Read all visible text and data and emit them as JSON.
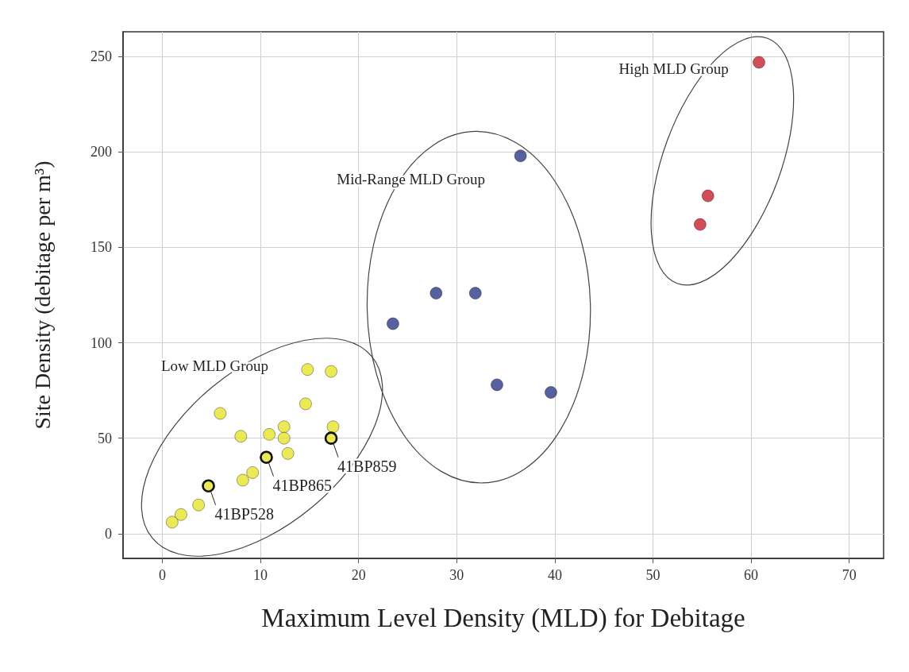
{
  "chart_data": {
    "type": "scatter",
    "xlabel": "Maximum Level Density (MLD) for Debitage",
    "ylabel": "Site Density (debitage per m³)",
    "xlim": [
      -4,
      73.5
    ],
    "ylim": [
      -13,
      263
    ],
    "xticks": [
      0,
      10,
      20,
      30,
      40,
      50,
      60,
      70
    ],
    "yticks": [
      0,
      50,
      100,
      150,
      200,
      250
    ],
    "grid": true,
    "marker": "circle",
    "legend": false,
    "series": [
      {
        "name": "Low MLD Group",
        "color": "#e6e42c",
        "x": [
          14.8,
          17.2,
          14.6,
          5.9,
          8.0,
          10.9,
          12.4,
          12.4,
          17.4,
          17.2,
          12.8,
          10.6,
          9.2,
          8.2,
          4.7,
          3.7,
          1.9,
          1.0
        ],
        "values": [
          86,
          85,
          68,
          63,
          51,
          52,
          56,
          50,
          56,
          50,
          42,
          40,
          32,
          28,
          25,
          15,
          10,
          6
        ]
      },
      {
        "name": "Mid-Range MLD Group",
        "color": "#2e3a87",
        "x": [
          36.5,
          27.9,
          31.9,
          23.5,
          34.1,
          39.6
        ],
        "values": [
          198,
          126,
          126,
          110,
          78,
          74
        ]
      },
      {
        "name": "High MLD Group",
        "color": "#c8202e",
        "x": [
          60.8,
          55.6,
          54.8
        ],
        "values": [
          247,
          177,
          162
        ]
      }
    ],
    "annotations": [
      {
        "text": "41BP528",
        "x": 4.7,
        "y": 25
      },
      {
        "text": "41BP865",
        "x": 10.6,
        "y": 40
      },
      {
        "text": "41BP859",
        "x": 17.2,
        "y": 50
      }
    ]
  }
}
